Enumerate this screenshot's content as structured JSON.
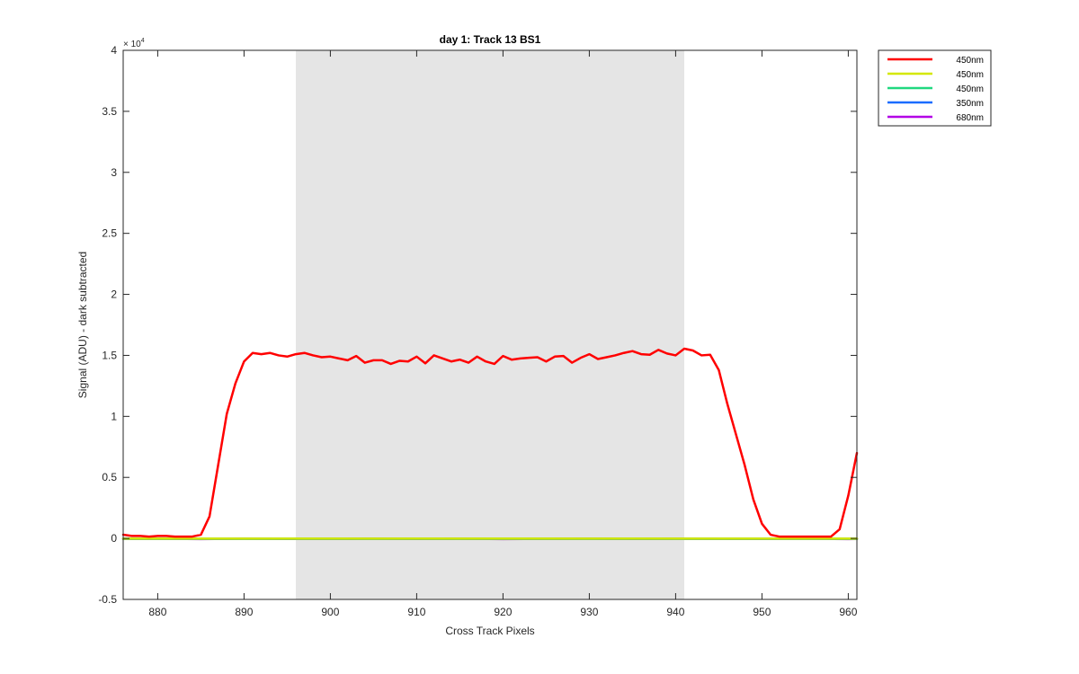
{
  "chart_data": {
    "type": "line",
    "title": "day 1: Track 13  BS1",
    "xlabel": "Cross Track Pixels",
    "ylabel": "Signal (ADU) - dark subtracted",
    "xlim": [
      876,
      961
    ],
    "ylim": [
      -5000,
      40000
    ],
    "x_ticks": [
      880,
      890,
      900,
      910,
      920,
      930,
      940,
      950,
      960
    ],
    "y_ticks": [
      -5000,
      0,
      5000,
      10000,
      15000,
      20000,
      25000,
      30000,
      35000,
      40000
    ],
    "y_tick_labels": [
      "-0.5",
      "0",
      "0.5",
      "1",
      "1.5",
      "2",
      "2.5",
      "3",
      "3.5",
      "4"
    ],
    "y_exponent_label": "× 10",
    "y_exponent_power": "4",
    "grid": false,
    "shaded_region": {
      "x": [
        896,
        941
      ],
      "color": "#e5e5e5"
    },
    "legend": {
      "placement": "outside-top-right",
      "entries": [
        {
          "label": "450nm",
          "color": "#ff0000"
        },
        {
          "label": "450nm",
          "color": "#d4e800"
        },
        {
          "label": "450nm",
          "color": "#20d880"
        },
        {
          "label": "350nm",
          "color": "#1a6cff"
        },
        {
          "label": "680nm",
          "color": "#b300e6"
        }
      ]
    },
    "series": [
      {
        "name": "450nm",
        "color": "#ff0000",
        "x": [
          876,
          877,
          878,
          879,
          880,
          881,
          882,
          883,
          884,
          885,
          886,
          887,
          888,
          889,
          890,
          891,
          892,
          893,
          894,
          895,
          896,
          897,
          898,
          899,
          900,
          901,
          902,
          903,
          904,
          905,
          906,
          907,
          908,
          909,
          910,
          911,
          912,
          913,
          914,
          915,
          916,
          917,
          918,
          919,
          920,
          921,
          922,
          923,
          924,
          925,
          926,
          927,
          928,
          929,
          930,
          931,
          932,
          933,
          934,
          935,
          936,
          937,
          938,
          939,
          940,
          941,
          942,
          943,
          944,
          945,
          946,
          947,
          948,
          949,
          950,
          951,
          952,
          953,
          954,
          955,
          956,
          957,
          958,
          959,
          960,
          961
        ],
        "values": [
          300,
          200,
          200,
          150,
          200,
          200,
          150,
          150,
          150,
          300,
          1800,
          6000,
          10200,
          12700,
          14500,
          15200,
          15100,
          15200,
          15000,
          14900,
          15100,
          15200,
          15000,
          14850,
          14900,
          14750,
          14600,
          14950,
          14400,
          14600,
          14600,
          14300,
          14550,
          14500,
          14900,
          14350,
          15000,
          14750,
          14500,
          14650,
          14400,
          14900,
          14500,
          14300,
          14950,
          14650,
          14750,
          14800,
          14850,
          14500,
          14900,
          14950,
          14400,
          14800,
          15100,
          14700,
          14850,
          15000,
          15200,
          15350,
          15100,
          15050,
          15450,
          15150,
          15000,
          15550,
          15400,
          15000,
          15050,
          13800,
          11000,
          8500,
          6000,
          3200,
          1200,
          300,
          150,
          150,
          150,
          150,
          150,
          150,
          150,
          750,
          3500,
          7000
        ]
      },
      {
        "name": "450nm",
        "color": "#d4e800",
        "x": [
          876,
          961
        ],
        "values": [
          -20,
          -20
        ]
      },
      {
        "name": "450nm",
        "color": "#20d880",
        "x": [
          876,
          961
        ],
        "values": [
          -30,
          -30
        ]
      },
      {
        "name": "350nm",
        "color": "#1a6cff",
        "x": [
          876,
          961
        ],
        "values": [
          -40,
          -40
        ]
      },
      {
        "name": "680nm",
        "color": "#b300e6",
        "x": [
          876,
          880,
          885,
          890,
          895,
          900,
          905,
          910,
          915,
          920,
          925,
          930,
          935,
          940,
          945,
          950,
          955,
          960,
          961
        ],
        "values": [
          -50,
          -30,
          -60,
          -20,
          -50,
          -40,
          -20,
          -50,
          -30,
          -60,
          -40,
          -20,
          -50,
          -30,
          -40,
          -50,
          -30,
          -60,
          -50
        ]
      }
    ]
  }
}
